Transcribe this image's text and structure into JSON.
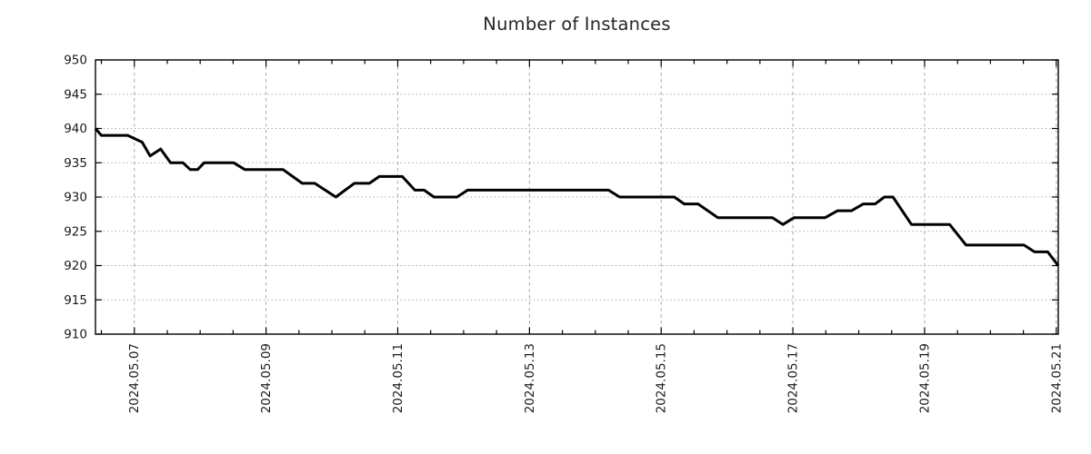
{
  "chart_data": {
    "type": "line",
    "title": "Number of Instances",
    "xlabel": "",
    "ylabel": "",
    "x_domain": [
      6.41,
      21.03
    ],
    "ylim": [
      910,
      950
    ],
    "y_ticks": [
      910,
      915,
      920,
      925,
      930,
      935,
      940,
      945,
      950
    ],
    "y_tick_labels": [
      "910",
      "915",
      "920",
      "925",
      "930",
      "935",
      "940",
      "945",
      "950"
    ],
    "x_major_ticks": [
      7,
      9,
      11,
      13,
      15,
      17,
      19,
      21
    ],
    "x_major_labels": [
      "2024.05.07",
      "2024.05.09",
      "2024.05.11",
      "2024.05.13",
      "2024.05.15",
      "2024.05.17",
      "2024.05.19",
      "2024.05.21"
    ],
    "x_minor_tick_step": 0.5,
    "grid": {
      "horizontal_style": "dotted",
      "vertical_style": "dashed",
      "color": "#a8a8a8"
    },
    "line": {
      "color": "#000000",
      "width": 3
    },
    "axis_color": "#000000",
    "legend": "none",
    "series": [
      {
        "name": "instances",
        "points": [
          [
            6.41,
            940
          ],
          [
            6.5,
            939
          ],
          [
            6.9,
            939
          ],
          [
            7.12,
            938
          ],
          [
            7.24,
            936
          ],
          [
            7.4,
            937
          ],
          [
            7.55,
            935
          ],
          [
            7.74,
            935
          ],
          [
            7.85,
            934
          ],
          [
            7.96,
            934
          ],
          [
            8.06,
            935
          ],
          [
            8.51,
            935
          ],
          [
            8.68,
            934
          ],
          [
            9.26,
            934
          ],
          [
            9.55,
            932
          ],
          [
            9.74,
            932
          ],
          [
            10.06,
            930
          ],
          [
            10.34,
            932
          ],
          [
            10.57,
            932
          ],
          [
            10.72,
            933
          ],
          [
            11.07,
            933
          ],
          [
            11.26,
            931
          ],
          [
            11.4,
            931
          ],
          [
            11.55,
            930
          ],
          [
            11.9,
            930
          ],
          [
            12.06,
            931
          ],
          [
            14.2,
            931
          ],
          [
            14.37,
            930
          ],
          [
            15.2,
            930
          ],
          [
            15.35,
            929
          ],
          [
            15.56,
            929
          ],
          [
            15.86,
            927
          ],
          [
            16.69,
            927
          ],
          [
            16.85,
            926
          ],
          [
            17.02,
            927
          ],
          [
            17.49,
            927
          ],
          [
            17.68,
            928
          ],
          [
            17.89,
            928
          ],
          [
            18.07,
            929
          ],
          [
            18.25,
            929
          ],
          [
            18.39,
            930
          ],
          [
            18.52,
            930
          ],
          [
            18.8,
            926
          ],
          [
            19.38,
            926
          ],
          [
            19.63,
            923
          ],
          [
            20.51,
            923
          ],
          [
            20.67,
            922
          ],
          [
            20.87,
            922
          ],
          [
            21.03,
            920
          ]
        ]
      }
    ]
  }
}
